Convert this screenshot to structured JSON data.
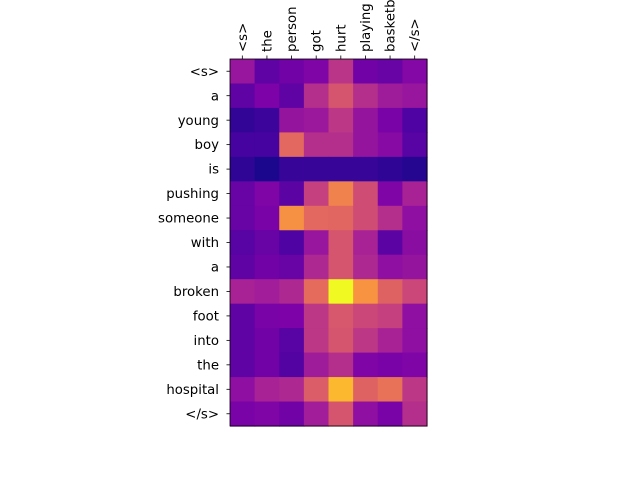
{
  "chart_data": {
    "type": "heatmap",
    "title": "",
    "xlabel": "",
    "ylabel": "",
    "colormap": "plasma",
    "value_range": [
      0,
      1
    ],
    "x_tick_position": "top",
    "x_tick_rotation": "vertical",
    "grid": false,
    "legend": "none",
    "x_labels": [
      "<s>",
      "the",
      "person",
      "got",
      "hurt",
      "playing",
      "basketball",
      "</s>"
    ],
    "y_labels": [
      "<s>",
      "a",
      "young",
      "boy",
      "is",
      "pushing",
      "someone",
      "with",
      "a",
      "broken",
      "foot",
      "into",
      "the",
      "hospital",
      "</s>"
    ],
    "values": [
      [
        0.33,
        0.18,
        0.22,
        0.26,
        0.44,
        0.22,
        0.2,
        0.27
      ],
      [
        0.18,
        0.25,
        0.18,
        0.42,
        0.55,
        0.42,
        0.35,
        0.33
      ],
      [
        0.08,
        0.1,
        0.32,
        0.34,
        0.45,
        0.32,
        0.24,
        0.14
      ],
      [
        0.12,
        0.12,
        0.62,
        0.42,
        0.42,
        0.32,
        0.28,
        0.16
      ],
      [
        0.07,
        0.03,
        0.09,
        0.09,
        0.09,
        0.09,
        0.07,
        0.05
      ],
      [
        0.2,
        0.26,
        0.17,
        0.48,
        0.7,
        0.52,
        0.26,
        0.38
      ],
      [
        0.2,
        0.24,
        0.74,
        0.62,
        0.61,
        0.52,
        0.42,
        0.3
      ],
      [
        0.16,
        0.2,
        0.14,
        0.33,
        0.55,
        0.38,
        0.17,
        0.29
      ],
      [
        0.18,
        0.22,
        0.2,
        0.4,
        0.55,
        0.4,
        0.3,
        0.32
      ],
      [
        0.38,
        0.36,
        0.4,
        0.63,
        1.0,
        0.75,
        0.6,
        0.5
      ],
      [
        0.18,
        0.24,
        0.25,
        0.45,
        0.56,
        0.5,
        0.48,
        0.3
      ],
      [
        0.18,
        0.22,
        0.16,
        0.45,
        0.55,
        0.45,
        0.38,
        0.3
      ],
      [
        0.18,
        0.22,
        0.15,
        0.35,
        0.42,
        0.26,
        0.24,
        0.26
      ],
      [
        0.3,
        0.38,
        0.4,
        0.58,
        0.85,
        0.6,
        0.65,
        0.45
      ],
      [
        0.24,
        0.26,
        0.22,
        0.36,
        0.55,
        0.3,
        0.24,
        0.42
      ]
    ]
  }
}
